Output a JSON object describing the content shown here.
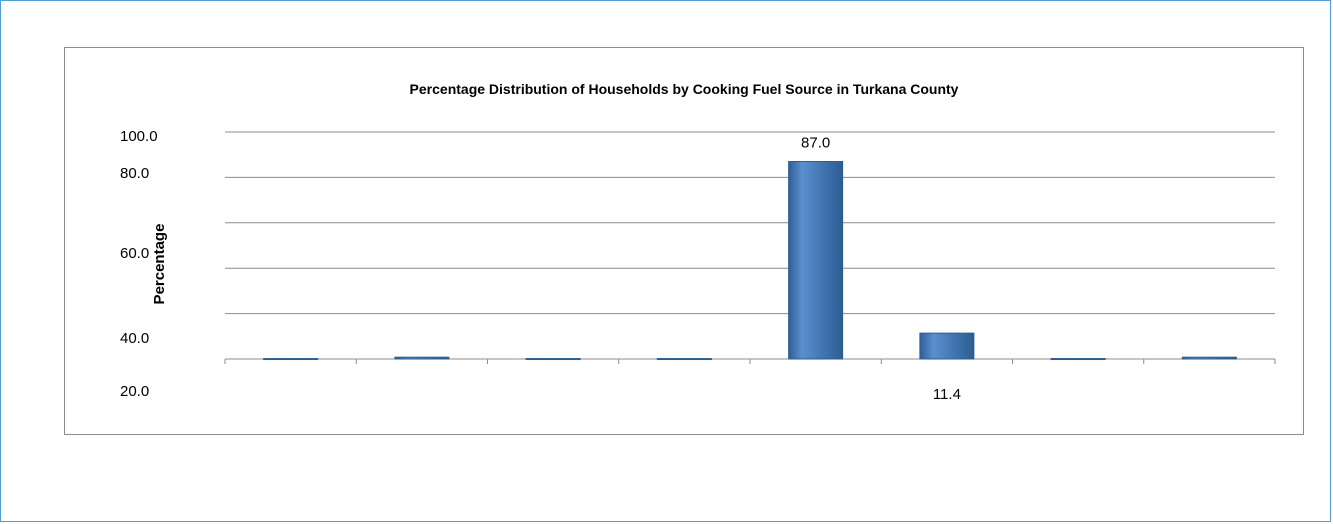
{
  "chart_data": {
    "type": "bar",
    "title": "Percentage Distribution of Households by Cooking Fuel Source in Turkana County",
    "ylabel": "Percentage",
    "xlabel": "",
    "ylim": [
      0,
      100
    ],
    "y_tick_labels": [
      "100.0",
      "80.0",
      "60.0",
      "40.0",
      "20.0"
    ],
    "grid": true,
    "categories": [
      "",
      "",
      "",
      "",
      "",
      "",
      "",
      ""
    ],
    "values": [
      0.2,
      0.8,
      0.2,
      0.2,
      87.0,
      11.4,
      0.2,
      0.8
    ],
    "data_labels": [
      "",
      "",
      "",
      "",
      "87.0",
      "11.4",
      "",
      ""
    ],
    "bar_color": "#4a7ebb",
    "bar_edge_color": "#2c5d91",
    "grid_color": "#8c8c8c"
  }
}
